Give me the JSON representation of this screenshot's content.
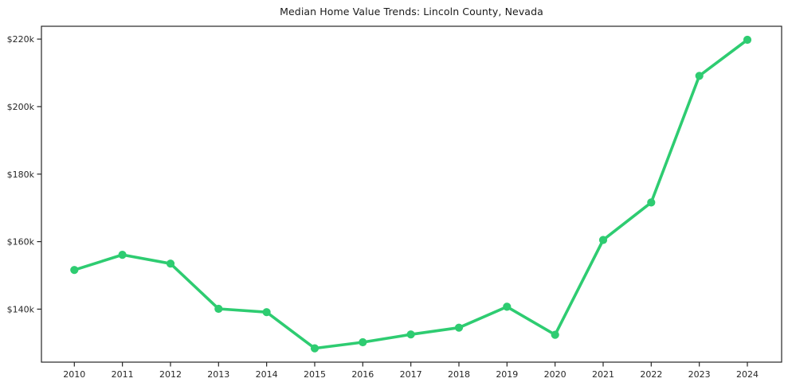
{
  "chart_data": {
    "type": "line",
    "title": "Median Home Value Trends: Lincoln County, Nevada",
    "xlabel": "",
    "ylabel": "",
    "categories": [
      2010,
      2011,
      2012,
      2013,
      2014,
      2015,
      2016,
      2017,
      2018,
      2019,
      2020,
      2021,
      2022,
      2023,
      2024
    ],
    "series": [
      {
        "name": "Median Home Value",
        "values_k": [
          151.6,
          156.1,
          153.5,
          140.1,
          139.1,
          128.4,
          130.2,
          132.5,
          134.5,
          140.7,
          132.4,
          160.5,
          171.6,
          209.1,
          219.8
        ]
      }
    ],
    "y_ticks": [
      {
        "value_k": 140,
        "label": "$140k"
      },
      {
        "value_k": 160,
        "label": "$160k"
      },
      {
        "value_k": 180,
        "label": "$180k"
      },
      {
        "value_k": 200,
        "label": "$200k"
      },
      {
        "value_k": 220,
        "label": "$220k"
      }
    ],
    "ylim_k": [
      124.3,
      223.8
    ],
    "grid": false,
    "legend_position": "none",
    "line_color": "#2ecc71",
    "marker_style": "circle",
    "axis_color": "#262626"
  }
}
